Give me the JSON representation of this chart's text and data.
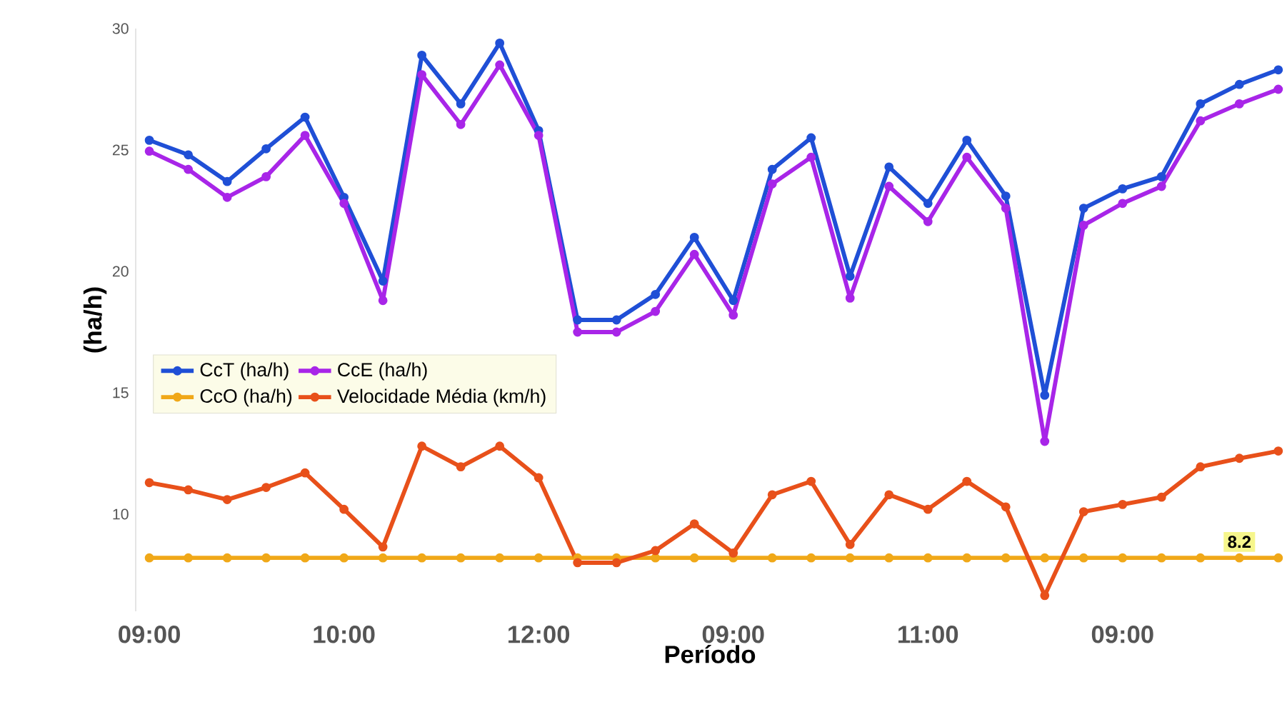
{
  "chart_data": {
    "type": "line",
    "xlabel": "Período",
    "ylabel": "(ha/h)",
    "categories": [
      "09:00",
      null,
      null,
      null,
      null,
      "10:00",
      null,
      null,
      null,
      null,
      "12:00",
      null,
      null,
      null,
      null,
      "09:00",
      null,
      null,
      null,
      null,
      "11:00",
      null,
      null,
      null,
      null,
      "09:00",
      null,
      null,
      null,
      null
    ],
    "series": [
      {
        "name": "CcT (ha/h)",
        "color": "#1f4fd6",
        "values": [
          25.4,
          24.8,
          23.7,
          25.05,
          26.35,
          23.05,
          19.6,
          28.9,
          26.9,
          29.4,
          25.8,
          18.0,
          18.0,
          19.05,
          21.4,
          18.8,
          24.2,
          25.5,
          19.8,
          24.3,
          22.8,
          25.4,
          23.1,
          14.9,
          22.6,
          23.4,
          23.9,
          26.9,
          27.7,
          28.3
        ]
      },
      {
        "name": "CcE (ha/h)",
        "color": "#a825e8",
        "values": [
          24.95,
          24.2,
          23.05,
          23.9,
          25.6,
          22.8,
          18.8,
          28.1,
          26.05,
          28.5,
          25.6,
          17.5,
          17.5,
          18.35,
          20.7,
          18.2,
          23.6,
          24.7,
          18.9,
          23.5,
          22.05,
          24.7,
          22.6,
          13.0,
          21.9,
          22.8,
          23.5,
          26.2,
          26.9,
          27.5
        ]
      },
      {
        "name": "CcO (ha/h)",
        "color": "#f0a818",
        "values": [
          8.2,
          8.2,
          8.2,
          8.2,
          8.2,
          8.2,
          8.2,
          8.2,
          8.2,
          8.2,
          8.2,
          8.2,
          8.2,
          8.2,
          8.2,
          8.2,
          8.2,
          8.2,
          8.2,
          8.2,
          8.2,
          8.2,
          8.2,
          8.2,
          8.2,
          8.2,
          8.2,
          8.2,
          8.2,
          8.2
        ],
        "value_labels": [
          null,
          null,
          null,
          null,
          null,
          null,
          null,
          null,
          null,
          null,
          null,
          null,
          null,
          null,
          null,
          null,
          null,
          null,
          null,
          null,
          null,
          null,
          null,
          null,
          null,
          null,
          null,
          null,
          "8.2",
          null
        ]
      },
      {
        "name": "Velocidade Média (km/h)",
        "color": "#e8501a",
        "values": [
          11.3,
          11.0,
          10.6,
          11.1,
          11.7,
          10.2,
          8.65,
          12.8,
          11.95,
          12.8,
          11.5,
          8.0,
          8.0,
          8.5,
          9.6,
          8.4,
          10.8,
          11.35,
          8.75,
          10.8,
          10.2,
          11.35,
          10.3,
          6.65,
          10.1,
          10.4,
          10.7,
          11.95,
          12.3,
          12.6
        ]
      }
    ],
    "ylim": [
      6,
      30
    ],
    "yticks": [
      10,
      15,
      20,
      25,
      30
    ],
    "grid": false,
    "legend": "left",
    "marker": "circle"
  }
}
